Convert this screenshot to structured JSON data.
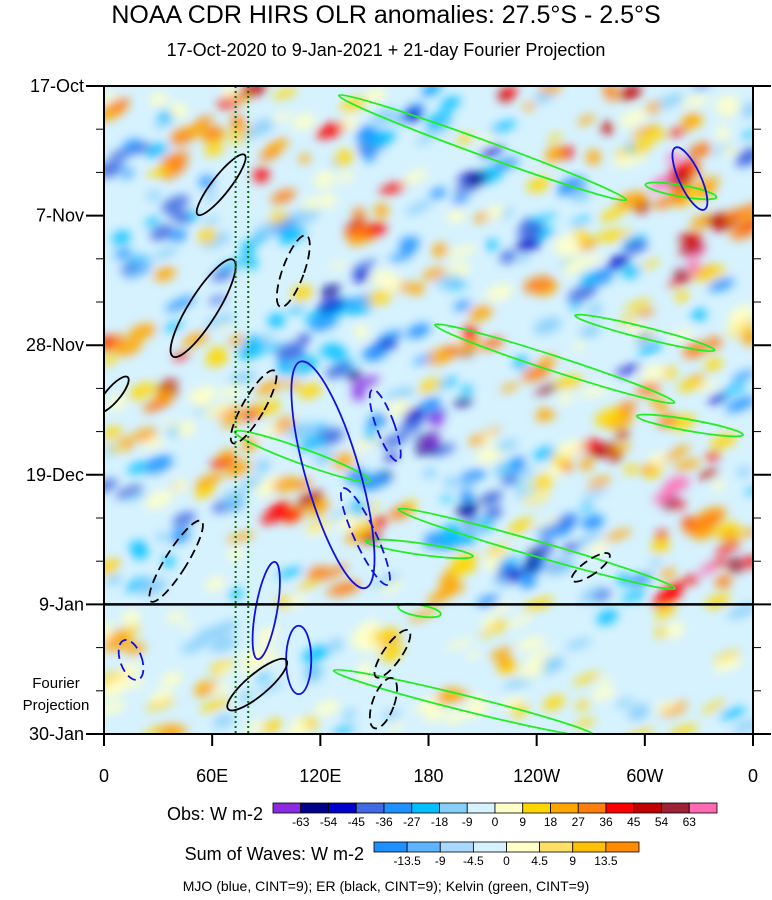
{
  "header": {
    "title": "NOAA CDR HIRS OLR anomalies: 27.5°S - 2.5°S",
    "subtitle": "17-Oct-2020 to 9-Jan-2021 + 21-day Fourier Projection"
  },
  "footer": "MJO (blue, CINT=9); ER (black, CINT=9); Kelvin (green, CINT=9)",
  "chart_data": {
    "type": "heatmap",
    "title": "NOAA CDR HIRS OLR anomalies: 27.5°S - 2.5°S",
    "subtitle": "17-Oct-2020 to 9-Jan-2021 + 21-day Fourier Projection",
    "x_ticks": [
      "0",
      "60E",
      "120E",
      "180",
      "120W",
      "60W",
      "0"
    ],
    "x_range_deg_east": [
      0,
      360
    ],
    "y_ticks": [
      "17-Oct",
      "7-Nov",
      "28-Nov",
      "19-Dec",
      "9-Jan",
      "30-Jan"
    ],
    "y_range": [
      "17-Oct-2020",
      "30-Jan-2021"
    ],
    "y_direction": "time increases downward",
    "observation_end": "9-Jan",
    "projection_label": [
      "Fourier",
      "Projection"
    ],
    "reference_lines_deg_east": [
      73,
      80
    ],
    "obs_colorbar": {
      "label": "Obs: W m-2",
      "levels": [
        -63,
        -54,
        -45,
        -36,
        -27,
        -18,
        -9,
        0,
        9,
        18,
        27,
        36,
        45,
        54,
        63
      ],
      "colors": [
        "#8a2be2",
        "#00008b",
        "#0000cd",
        "#4169e1",
        "#1e90ff",
        "#00bfff",
        "#87cefa",
        "#d6f2ff",
        "#ffffc8",
        "#ffd700",
        "#ffa500",
        "#ff7f0e",
        "#ff0000",
        "#c00000",
        "#9b2335",
        "#ff69b4"
      ]
    },
    "waves_colorbar": {
      "label": "Sum of Waves: W m-2",
      "levels": [
        -13.5,
        -9,
        -4.5,
        0,
        4.5,
        9,
        13.5
      ],
      "colors": [
        "#1e90ff",
        "#5fb4ff",
        "#a8d8ff",
        "#d6f2ff",
        "#ffffc8",
        "#ffe066",
        "#ffc107",
        "#ff8c00"
      ]
    },
    "overlays": [
      {
        "wave": "MJO",
        "color": "#1010e0",
        "cint": 9
      },
      {
        "wave": "ER",
        "color": "#000000",
        "cint": 9
      },
      {
        "wave": "Kelvin",
        "color": "#22ee22",
        "cint": 9
      }
    ]
  }
}
